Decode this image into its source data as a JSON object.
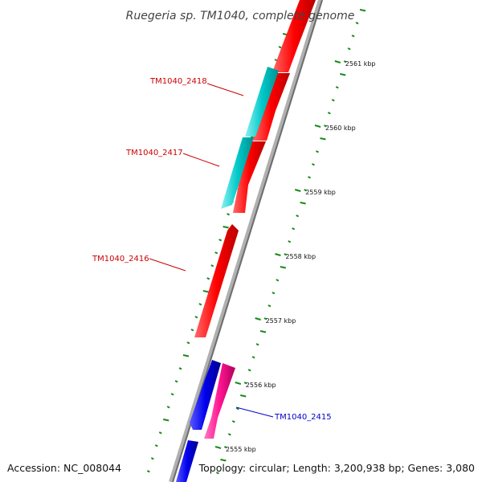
{
  "title": "Ruegeria sp. TM1040, complete genome",
  "footer": {
    "accession": "Accession: NC_008044",
    "summary": "Topology: circular; Length: 3,200,938 bp; Genes: 3,080"
  },
  "colors": {
    "forward_gene": "#ff0000",
    "reverse_gene": "#00c8c8",
    "blue_gene": "#0000ee",
    "pink_gene": "#ff1493",
    "backbone": "#808080",
    "ticks": "#1a8a1a",
    "label_red": "#cc0000",
    "label_blue": "#0000cc"
  },
  "scale_labels": [
    "2555 kbp",
    "2556 kbp",
    "2557 kbp",
    "2558 kbp",
    "2559 kbp",
    "2560 kbp",
    "2561 kbp"
  ],
  "gene_labels": [
    {
      "id": "TM1040_2418",
      "color_key": "label_red"
    },
    {
      "id": "TM1040_2417",
      "color_key": "label_red"
    },
    {
      "id": "TM1040_2416",
      "color_key": "label_red"
    },
    {
      "id": "TM1040_2415",
      "color_key": "label_blue"
    }
  ]
}
